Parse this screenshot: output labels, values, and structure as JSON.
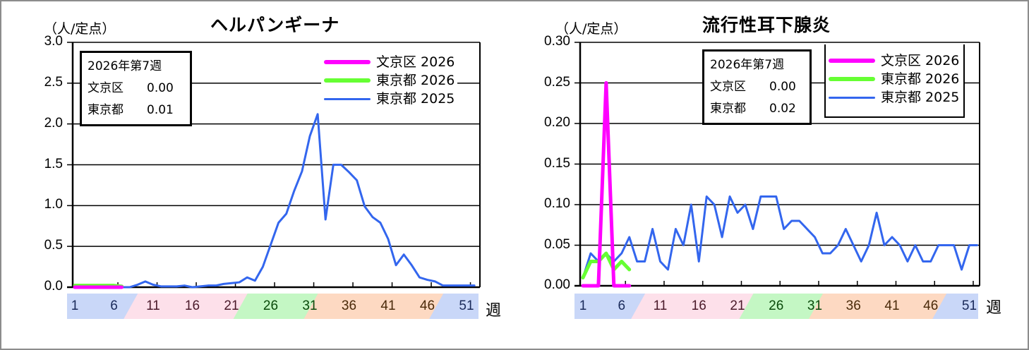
{
  "charts": [
    {
      "id": "herpangina",
      "title": "ヘルパンギーナ",
      "unit_label": "（人/定点）",
      "y_ticks": [
        "3.0",
        "2.5",
        "2.0",
        "1.5",
        "1.0",
        "0.5",
        "0.0"
      ],
      "x_unit": "週",
      "week_labels": [
        "1",
        "6",
        "11",
        "16",
        "21",
        "26",
        "31",
        "36",
        "41",
        "46",
        "51"
      ],
      "info_box": {
        "heading": "2026年第7週",
        "rows": [
          {
            "label": "文京区",
            "value": "0.00"
          },
          {
            "label": "東京都",
            "value": "0.01"
          }
        ]
      },
      "legend": [
        {
          "label": "文京区 2026",
          "color": "#ff00ff"
        },
        {
          "label": "東京都 2026",
          "color": "#66ff33"
        },
        {
          "label": "東京都 2025",
          "color": "#3366ee"
        }
      ]
    },
    {
      "id": "mumps",
      "title": "流行性耳下腺炎",
      "unit_label": "（人/定点）",
      "y_ticks": [
        "0.30",
        "0.25",
        "0.20",
        "0.15",
        "0.10",
        "0.05",
        "0.00"
      ],
      "x_unit": "週",
      "week_labels": [
        "1",
        "6",
        "11",
        "16",
        "21",
        "26",
        "31",
        "36",
        "41",
        "46",
        "51"
      ],
      "info_box": {
        "heading": "2026年第7週",
        "rows": [
          {
            "label": "文京区",
            "value": "0.00"
          },
          {
            "label": "東京都",
            "value": "0.02"
          }
        ]
      },
      "legend": [
        {
          "label": "文京区 2026",
          "color": "#ff00ff"
        },
        {
          "label": "東京都 2026",
          "color": "#66ff33"
        },
        {
          "label": "東京都 2025",
          "color": "#3366ee"
        }
      ]
    }
  ],
  "season_bands": [
    {
      "from": 1,
      "to": 8,
      "color": "#c9d7f8"
    },
    {
      "from": 9,
      "to": 22,
      "color": "#fde0ea"
    },
    {
      "from": 23,
      "to": 31,
      "color": "#c4f7c4"
    },
    {
      "from": 32,
      "to": 47,
      "color": "#fdd9c2"
    },
    {
      "from": 48,
      "to": 52,
      "color": "#c9d7f8"
    }
  ],
  "chart_data": [
    {
      "type": "line",
      "title": "ヘルパンギーナ",
      "xlabel": "週",
      "ylabel": "（人/定点）",
      "ylim": [
        0,
        3.0
      ],
      "grid": true,
      "legend_position": "top-right",
      "x": [
        1,
        2,
        3,
        4,
        5,
        6,
        7,
        8,
        9,
        10,
        11,
        12,
        13,
        14,
        15,
        16,
        17,
        18,
        19,
        20,
        21,
        22,
        23,
        24,
        25,
        26,
        27,
        28,
        29,
        30,
        31,
        32,
        33,
        34,
        35,
        36,
        37,
        38,
        39,
        40,
        41,
        42,
        43,
        44,
        45,
        46,
        47,
        48,
        49,
        50,
        51,
        52
      ],
      "series": [
        {
          "name": "文京区 2026",
          "color": "#ff00ff",
          "values": [
            0,
            0,
            0,
            0,
            0,
            0,
            0
          ]
        },
        {
          "name": "東京都 2026",
          "color": "#66ff33",
          "values": [
            0.02,
            0.02,
            0.02,
            0.02,
            0.02,
            0.02,
            0.01
          ]
        },
        {
          "name": "東京都 2025",
          "color": "#3366ee",
          "values": [
            0.0,
            0.01,
            0.01,
            0.01,
            0.01,
            0.0,
            0.0,
            0.0,
            0.03,
            0.07,
            0.03,
            0.01,
            0.01,
            0.01,
            0.02,
            0.0,
            0.01,
            0.02,
            0.02,
            0.04,
            0.05,
            0.06,
            0.12,
            0.08,
            0.25,
            0.52,
            0.79,
            0.9,
            1.18,
            1.42,
            1.85,
            2.12,
            0.83,
            1.5,
            1.5,
            1.41,
            1.31,
            0.99,
            0.86,
            0.79,
            0.59,
            0.27,
            0.4,
            0.27,
            0.12,
            0.09,
            0.07,
            0.02,
            0.02,
            0.02,
            0.02,
            0.02
          ]
        }
      ]
    },
    {
      "type": "line",
      "title": "流行性耳下腺炎",
      "xlabel": "週",
      "ylabel": "（人/定点）",
      "ylim": [
        0,
        0.3
      ],
      "grid": true,
      "legend_position": "top-right",
      "x": [
        1,
        2,
        3,
        4,
        5,
        6,
        7,
        8,
        9,
        10,
        11,
        12,
        13,
        14,
        15,
        16,
        17,
        18,
        19,
        20,
        21,
        22,
        23,
        24,
        25,
        26,
        27,
        28,
        29,
        30,
        31,
        32,
        33,
        34,
        35,
        36,
        37,
        38,
        39,
        40,
        41,
        42,
        43,
        44,
        45,
        46,
        47,
        48,
        49,
        50,
        51,
        52
      ],
      "series": [
        {
          "name": "文京区 2026",
          "color": "#ff00ff",
          "values": [
            0,
            0,
            0,
            0.25,
            0,
            0,
            0
          ]
        },
        {
          "name": "東京都 2026",
          "color": "#66ff33",
          "values": [
            0.01,
            0.03,
            0.03,
            0.04,
            0.02,
            0.03,
            0.02
          ]
        },
        {
          "name": "東京都 2025",
          "color": "#3366ee",
          "values": [
            0.01,
            0.04,
            0.03,
            0.04,
            0.03,
            0.04,
            0.06,
            0.03,
            0.03,
            0.07,
            0.03,
            0.02,
            0.07,
            0.05,
            0.1,
            0.03,
            0.11,
            0.1,
            0.06,
            0.11,
            0.09,
            0.1,
            0.07,
            0.11,
            0.11,
            0.11,
            0.07,
            0.08,
            0.08,
            0.07,
            0.06,
            0.04,
            0.04,
            0.05,
            0.07,
            0.05,
            0.03,
            0.05,
            0.09,
            0.05,
            0.06,
            0.05,
            0.03,
            0.05,
            0.03,
            0.03,
            0.05,
            0.05,
            0.05,
            0.02,
            0.05,
            0.05
          ]
        }
      ]
    }
  ]
}
